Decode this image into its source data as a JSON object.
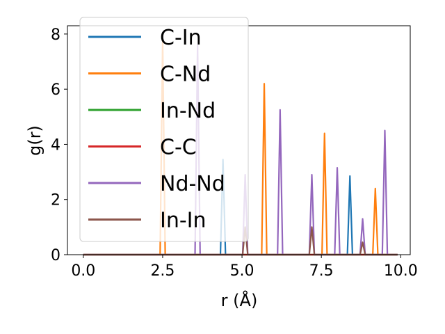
{
  "chart_data": {
    "type": "line",
    "title": "",
    "xlabel": "r (Å)",
    "ylabel": "g(r)",
    "xlim": [
      -0.5,
      10.3
    ],
    "ylim": [
      0,
      8.3
    ],
    "xticks": [
      0.0,
      2.5,
      5.0,
      7.5,
      10.0
    ],
    "xtick_labels": [
      "0.0",
      "2.5",
      "5.0",
      "7.5",
      "10.0"
    ],
    "yticks": [
      0,
      2,
      4,
      6,
      8
    ],
    "ytick_labels": [
      "0",
      "2",
      "4",
      "6",
      "8"
    ],
    "grid": false,
    "legend_position": "top-left",
    "x_range": [
      0.0,
      9.9
    ],
    "series": [
      {
        "name": "C-In",
        "color": "#1f77b4",
        "peaks": [
          [
            4.4,
            3.45
          ],
          [
            8.4,
            2.85
          ]
        ]
      },
      {
        "name": "C-Nd",
        "color": "#ff7f0e",
        "peaks": [
          [
            2.5,
            7.8
          ],
          [
            5.7,
            6.2
          ],
          [
            7.6,
            4.4
          ],
          [
            9.2,
            2.4
          ]
        ]
      },
      {
        "name": "In-Nd",
        "color": "#2ca02c",
        "peaks": []
      },
      {
        "name": "C-C",
        "color": "#d62728",
        "peaks": []
      },
      {
        "name": "Nd-Nd",
        "color": "#9467bd",
        "peaks": [
          [
            3.6,
            7.6
          ],
          [
            5.1,
            2.9
          ],
          [
            6.2,
            5.25
          ],
          [
            7.2,
            2.9
          ],
          [
            8.0,
            3.15
          ],
          [
            8.8,
            1.3
          ],
          [
            9.5,
            4.5
          ]
        ]
      },
      {
        "name": "In-In",
        "color": "#8c564b",
        "peaks": [
          [
            5.1,
            1.0
          ],
          [
            7.2,
            1.0
          ],
          [
            8.8,
            0.45
          ]
        ]
      }
    ]
  }
}
